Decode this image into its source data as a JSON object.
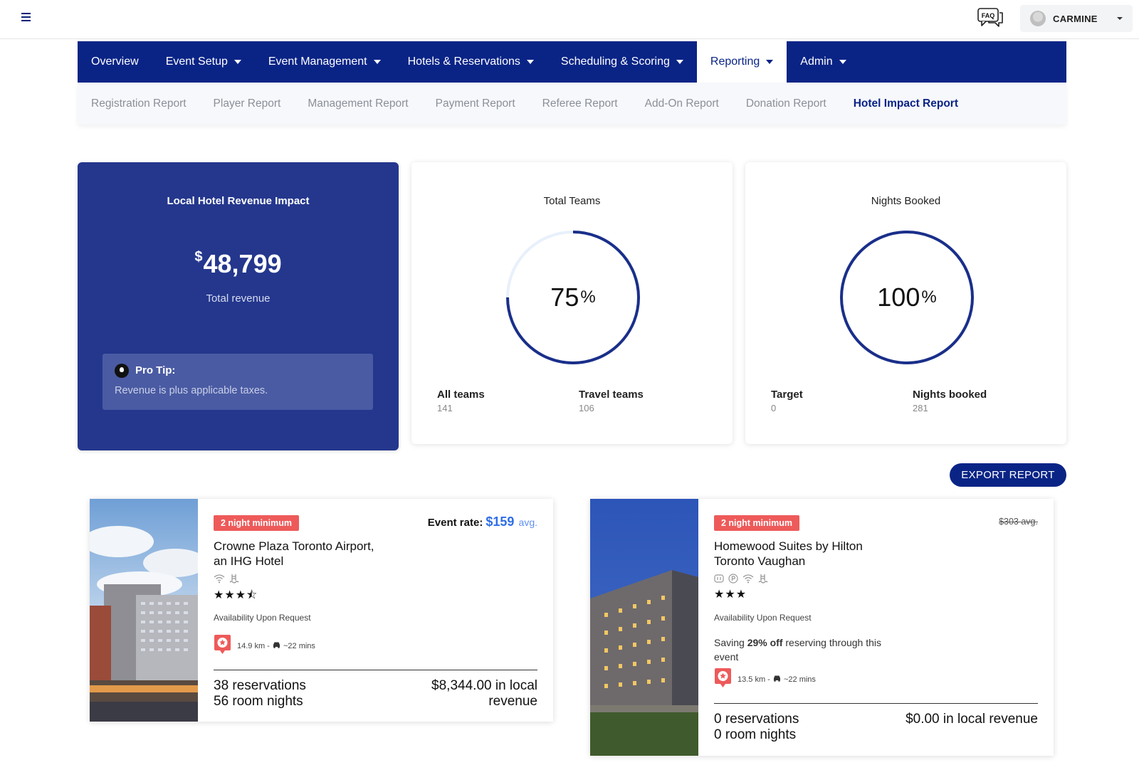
{
  "header": {
    "user_name": "CARMINE",
    "faq_label": "FAQ"
  },
  "nav": {
    "items": [
      {
        "label": "Overview",
        "dropdown": false,
        "active": false
      },
      {
        "label": "Event Setup",
        "dropdown": true,
        "active": false
      },
      {
        "label": "Event Management",
        "dropdown": true,
        "active": false
      },
      {
        "label": "Hotels & Reservations",
        "dropdown": true,
        "active": false
      },
      {
        "label": "Scheduling & Scoring",
        "dropdown": true,
        "active": false
      },
      {
        "label": "Reporting",
        "dropdown": true,
        "active": true
      },
      {
        "label": "Admin",
        "dropdown": true,
        "active": false
      }
    ],
    "subitems": [
      {
        "label": "Registration Report",
        "active": false
      },
      {
        "label": "Player Report",
        "active": false
      },
      {
        "label": "Management Report",
        "active": false
      },
      {
        "label": "Payment Report",
        "active": false
      },
      {
        "label": "Referee Report",
        "active": false
      },
      {
        "label": "Add-On Report",
        "active": false
      },
      {
        "label": "Donation Report",
        "active": false
      },
      {
        "label": "Hotel Impact Report",
        "active": true
      }
    ]
  },
  "revenue": {
    "title": "Local Hotel Revenue Impact",
    "currency": "$",
    "amount": "48,799",
    "subtitle": "Total revenue",
    "tip_title": "Pro Tip:",
    "tip_text": "Revenue is plus applicable taxes."
  },
  "teams": {
    "title": "Total Teams",
    "percent": "75",
    "percent_symbol": "%",
    "progress": 0.75,
    "left_label": "All teams",
    "left_value": "141",
    "right_label": "Travel teams",
    "right_value": "106"
  },
  "nights": {
    "title": "Nights Booked",
    "percent": "100",
    "percent_symbol": "%",
    "progress": 1.0,
    "left_label": "Target",
    "left_value": "0",
    "right_label": "Nights booked",
    "right_value": "281"
  },
  "export_label": "EXPORT REPORT",
  "hotels": [
    {
      "badge": "2 night minimum",
      "name_line1": "Crowne Plaza Toronto Airport,",
      "name_line2": "an IHG Hotel",
      "stars": "★★★⯪",
      "availability": "Availability Upon Request",
      "rate_label": "Event rate:",
      "rate_price": "$159",
      "rate_avg": "avg.",
      "distance": "14.9 km -",
      "drive": "~22 mins",
      "reservations": "38 reservations",
      "room_nights": "56 room nights",
      "revenue_line1": "$8,344.00 in local",
      "revenue_line2": "revenue"
    },
    {
      "badge": "2 night minimum",
      "name_line1": "Homewood Suites by Hilton",
      "name_line2": "Toronto Vaughan",
      "stars": "★★★",
      "availability": "Availability Upon Request",
      "old_rate": "$303 avg.",
      "saving_prefix": "Saving ",
      "saving_bold": "29% off",
      "saving_suffix": " reserving through this event",
      "distance": "13.5 km -",
      "drive": "~22 mins",
      "reservations": "0 reservations",
      "room_nights": "0 room nights",
      "revenue_line1": "$0.00 in local revenue"
    }
  ],
  "colors": {
    "primary": "#0a2486",
    "revenue_card": "#24378d",
    "badge": "#ee5a5a",
    "rate_blue": "#2e6ee6"
  }
}
